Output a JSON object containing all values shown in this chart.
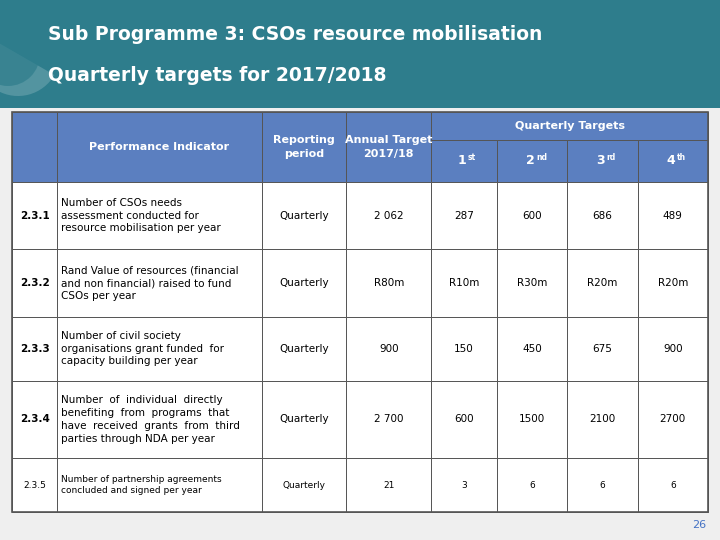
{
  "title_line1": "Sub Programme 3: CSOs resource mobilisation",
  "title_line2": "Quarterly targets for 2017/2018",
  "title_bg_color": "#2E7D8C",
  "title_text_color": "#FFFFFF",
  "header_bg_color": "#5B7FC0",
  "header_text_color": "#FFFFFF",
  "border_color": "#555555",
  "page_number": "26",
  "quarterly_targets_label": "Quarterly Targets",
  "background_color": "#EFEFEF",
  "rows": [
    {
      "id": "2.3.1",
      "indicator": "Number of CSOs needs\nassessment conducted for\nresource mobilisation per year",
      "reporting": "Quarterly",
      "annual": "2 062",
      "q1": "287",
      "q2": "600",
      "q3": "686",
      "q4": "489",
      "font_size": 7.5,
      "id_bold": true
    },
    {
      "id": "2.3.2",
      "indicator": "Rand Value of resources (financial\nand non financial) raised to fund\nCSOs per year",
      "reporting": "Quarterly",
      "annual": "R80m",
      "q1": "R10m",
      "q2": "R30m",
      "q3": "R20m",
      "q4": "R20m",
      "font_size": 7.5,
      "id_bold": true
    },
    {
      "id": "2.3.3",
      "indicator": "Number of civil society\norganisations grant funded  for\ncapacity building per year",
      "reporting": "Quarterly",
      "annual": "900",
      "q1": "150",
      "q2": "450",
      "q3": "675",
      "q4": "900",
      "font_size": 7.5,
      "id_bold": true
    },
    {
      "id": "2.3.4",
      "indicator": "Number  of  individual  directly\nbenefiting  from  programs  that\nhave  received  grants  from  third\nparties through NDA per year",
      "reporting": "Quarterly",
      "annual": "2 700",
      "q1": "600",
      "q2": "1500",
      "q3": "2100",
      "q4": "2700",
      "font_size": 7.5,
      "id_bold": true
    },
    {
      "id": "2.3.5",
      "indicator": "Number of partnership agreements\nconcluded and signed per year",
      "reporting": "Quarterly",
      "annual": "21",
      "q1": "3",
      "q2": "6",
      "q3": "6",
      "q4": "6",
      "font_size": 6.5,
      "id_bold": false
    }
  ]
}
